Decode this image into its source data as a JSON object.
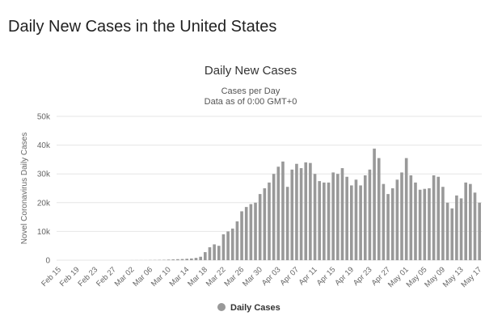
{
  "page_title": "Daily New Cases in the United States",
  "chart_data": {
    "type": "bar",
    "title": "Daily New Cases",
    "subtitle": [
      "Cases per Day",
      "Data as of 0:00 GMT+0"
    ],
    "y_label": "Novel Coronavirus Daily Cases",
    "categories": [
      "Feb 15",
      null,
      null,
      null,
      "Feb 19",
      null,
      null,
      null,
      "Feb 23",
      null,
      null,
      null,
      "Feb 27",
      null,
      null,
      null,
      "Mar 02",
      null,
      null,
      null,
      "Mar 06",
      null,
      null,
      null,
      "Mar 10",
      null,
      null,
      null,
      "Mar 14",
      null,
      null,
      null,
      "Mar 18",
      null,
      null,
      null,
      "Mar 22",
      null,
      null,
      null,
      "Mar 26",
      null,
      null,
      null,
      "Mar 30",
      null,
      null,
      null,
      "Apr 03",
      null,
      null,
      null,
      "Apr 07",
      null,
      null,
      null,
      "Apr 11",
      null,
      null,
      null,
      "Apr 15",
      null,
      null,
      null,
      "Apr 19",
      null,
      null,
      null,
      "Apr 23",
      null,
      null,
      null,
      "Apr 27",
      null,
      null,
      null,
      "May 01",
      null,
      null,
      null,
      "May 05",
      null,
      null,
      null,
      "May 09",
      null,
      null,
      null,
      "May 13",
      null,
      null,
      null,
      "May 17"
    ],
    "series": [
      {
        "name": "Daily Cases",
        "color": "#999999",
        "values": [
          0,
          0,
          0,
          0,
          0,
          0,
          0,
          0,
          0,
          0,
          0,
          0,
          0,
          0,
          0,
          1,
          20,
          25,
          30,
          30,
          60,
          70,
          100,
          120,
          200,
          270,
          350,
          400,
          500,
          600,
          800,
          1200,
          2800,
          4500,
          5500,
          5000,
          9000,
          10000,
          11000,
          13500,
          17000,
          18500,
          19500,
          20000,
          23000,
          25000,
          27000,
          30000,
          32500,
          34300,
          25500,
          31500,
          33500,
          32000,
          34000,
          33800,
          30000,
          27500,
          27000,
          27000,
          30500,
          30000,
          32000,
          29000,
          26000,
          28000,
          26000,
          29500,
          31500,
          38800,
          35500,
          26500,
          23000,
          25000,
          28000,
          30500,
          35500,
          29500,
          27000,
          24500,
          24800,
          25000,
          29500,
          29000,
          25500,
          20000,
          18000,
          22500,
          21500,
          27000,
          26500,
          23500,
          20000
        ]
      }
    ],
    "ylim": [
      0,
      50000
    ],
    "yticks": [
      0,
      {
        "value": 10000,
        "label": "10k"
      },
      {
        "value": 20000,
        "label": "20k"
      },
      {
        "value": 30000,
        "label": "30k"
      },
      {
        "value": 40000,
        "label": "40k"
      },
      {
        "value": 50000,
        "label": "50k"
      }
    ],
    "grid": true,
    "legend": "bottom"
  }
}
